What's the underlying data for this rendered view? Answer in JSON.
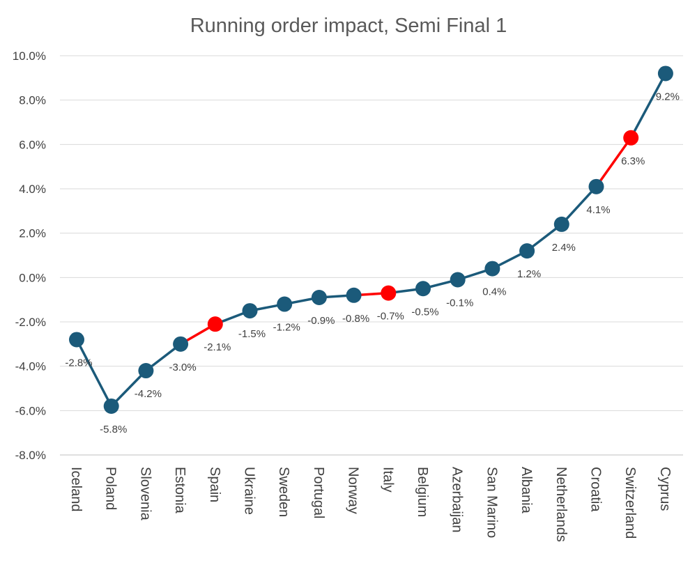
{
  "chart_data": {
    "type": "line",
    "title": "Running order impact, Semi Final 1",
    "xlabel": "",
    "ylabel": "",
    "ylim": [
      -8.0,
      10.0
    ],
    "y_ticks": [
      10.0,
      8.0,
      6.0,
      4.0,
      2.0,
      0.0,
      -2.0,
      -4.0,
      -6.0,
      -8.0
    ],
    "y_tick_labels": [
      "10.0%",
      "8.0%",
      "6.0%",
      "4.0%",
      "2.0%",
      "0.0%",
      "-2.0%",
      "-4.0%",
      "-6.0%",
      "-8.0%"
    ],
    "grid": true,
    "legend": "none",
    "categories": [
      "Iceland",
      "Poland",
      "Slovenia",
      "Estonia",
      "Spain",
      "Ukraine",
      "Sweden",
      "Portugal",
      "Norway",
      "Italy",
      "Belgium",
      "Azerbaijan",
      "San Marino",
      "Albania",
      "Netherlands",
      "Croatia",
      "Switzerland",
      "Cyprus"
    ],
    "series": [
      {
        "values": [
          -2.8,
          -5.8,
          -4.2,
          -3.0,
          -2.1,
          -1.5,
          -1.2,
          -0.9,
          -0.8,
          -0.7,
          -0.5,
          -0.1,
          0.4,
          1.2,
          2.4,
          4.1,
          6.3,
          9.2
        ],
        "data_labels": [
          "-2.8%",
          "-5.8%",
          "-4.2%",
          "-3.0%",
          "-2.1%",
          "-1.5%",
          "-1.2%",
          "-0.9%",
          "-0.8%",
          "-0.7%",
          "-0.5%",
          "-0.1%",
          "0.4%",
          "1.2%",
          "2.4%",
          "4.1%",
          "6.3%",
          "9.2%"
        ],
        "highlighted": [
          "Spain",
          "Italy",
          "Switzerland"
        ]
      }
    ],
    "colors": {
      "line": "#1b5a7a",
      "marker": "#1b5a7a",
      "highlight": "#ff0000"
    }
  }
}
